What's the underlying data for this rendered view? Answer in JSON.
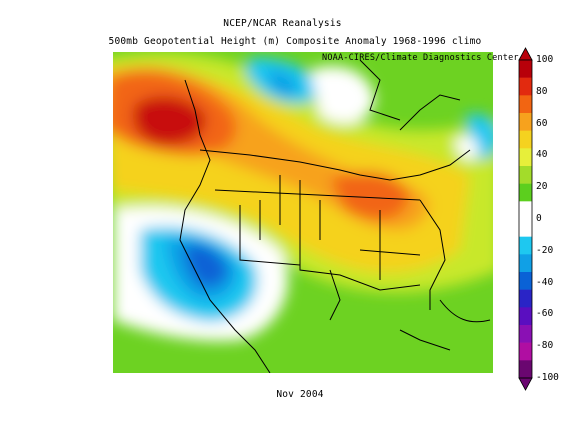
{
  "title": "NCEP/NCAR Reanalysis",
  "subtitle_line": "500mb Geopotential Height (m) Composite Anomaly 1968-1996 climo",
  "credit": "NOAA-CIRES/Climate Diagnostics Center",
  "date": "Nov 2004",
  "colorbar": {
    "ticks": [
      "100",
      "80",
      "60",
      "40",
      "20",
      "0",
      "-20",
      "-40",
      "-60",
      "-80",
      "-100"
    ],
    "colors": [
      "#b8000a",
      "#e22a0f",
      "#f26512",
      "#f7a21d",
      "#f5d21f",
      "#e7ef3a",
      "#a3dc2a",
      "#5ccf1e",
      "#ffffff",
      "#ffffff",
      "#1ec8f0",
      "#10a0e6",
      "#0a62d6",
      "#2a24c6",
      "#5a0ec0",
      "#8a10b4",
      "#b00ea2",
      "#6a0670"
    ]
  }
}
